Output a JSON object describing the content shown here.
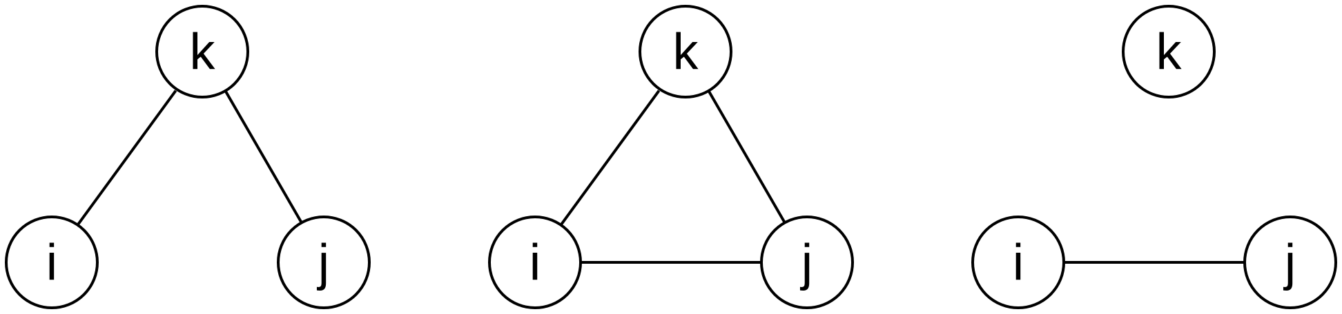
{
  "colors": {
    "stroke": "#000000",
    "node_fill": "#ffffff",
    "background": "#ffffff"
  },
  "graphs": [
    {
      "nodes": [
        {
          "id": "k",
          "label": "k"
        },
        {
          "id": "i",
          "label": "i"
        },
        {
          "id": "j",
          "label": "j"
        }
      ],
      "edges": [
        {
          "from": "k",
          "to": "i"
        },
        {
          "from": "k",
          "to": "j"
        }
      ]
    },
    {
      "nodes": [
        {
          "id": "k",
          "label": "k"
        },
        {
          "id": "i",
          "label": "i"
        },
        {
          "id": "j",
          "label": "j"
        }
      ],
      "edges": [
        {
          "from": "k",
          "to": "i"
        },
        {
          "from": "k",
          "to": "j"
        },
        {
          "from": "i",
          "to": "j"
        }
      ]
    },
    {
      "nodes": [
        {
          "id": "k",
          "label": "k"
        },
        {
          "id": "i",
          "label": "i"
        },
        {
          "id": "j",
          "label": "j"
        }
      ],
      "edges": [
        {
          "from": "i",
          "to": "j"
        }
      ]
    }
  ]
}
